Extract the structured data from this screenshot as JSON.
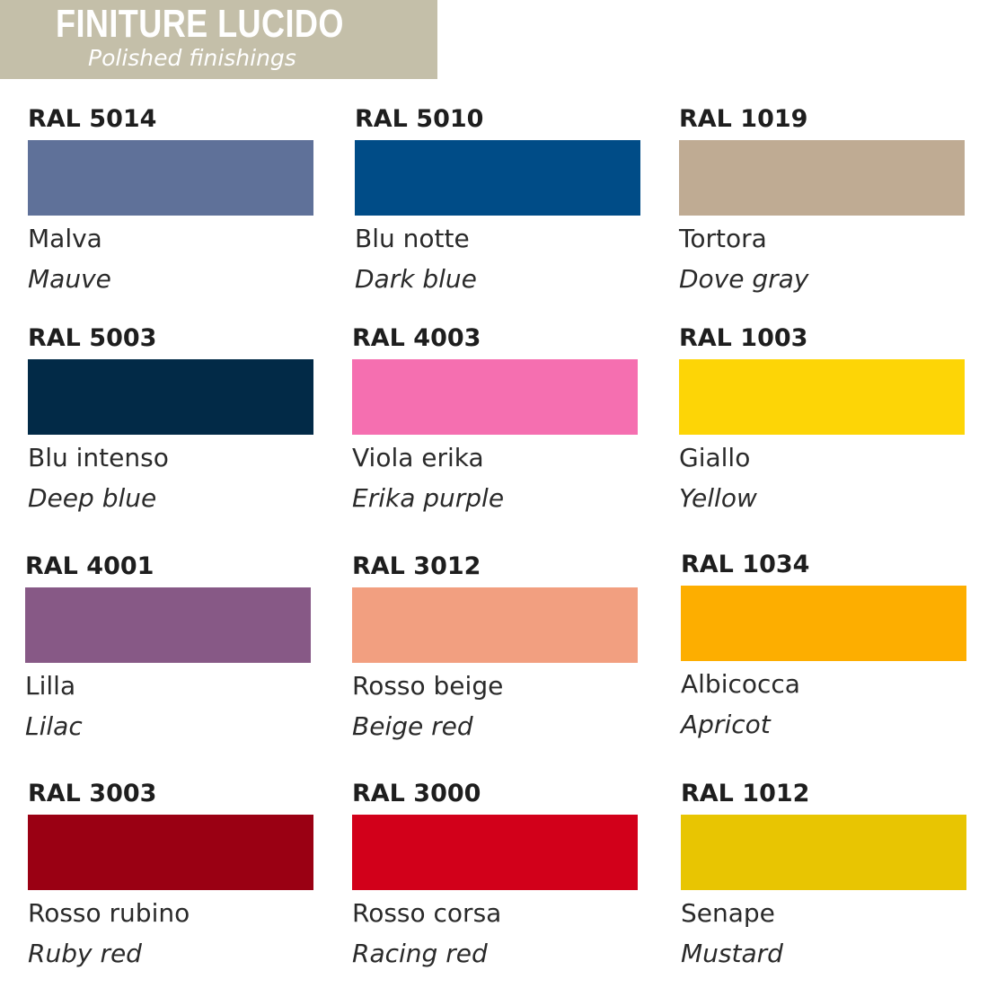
{
  "header": {
    "title": "FINITURE LUCIDO",
    "subtitle": "Polished finishings",
    "bg_color": "#c4bfa9"
  },
  "swatches": [
    {
      "code": "RAL 5014",
      "name": "Malva",
      "en": "Mauve",
      "color": "#5f7199"
    },
    {
      "code": "RAL 5010",
      "name": "Blu notte",
      "en": "Dark blue",
      "color": "#004c87"
    },
    {
      "code": "RAL 1019",
      "name": "Tortora",
      "en": "Dove gray",
      "color": "#bfab93"
    },
    {
      "code": "RAL 5003",
      "name": "Blu intenso",
      "en": "Deep blue",
      "color": "#022a47"
    },
    {
      "code": "RAL 4003",
      "name": "Viola erika",
      "en": "Erika purple",
      "color": "#f56fb0"
    },
    {
      "code": "RAL 1003",
      "name": "Giallo",
      "en": "Yellow",
      "color": "#fdd506"
    },
    {
      "code": "RAL 4001",
      "name": "Lilla",
      "en": "Lilac",
      "color": "#875986"
    },
    {
      "code": "RAL 3012",
      "name": "Rosso beige",
      "en": "Beige red",
      "color": "#f29f80"
    },
    {
      "code": "RAL 1034",
      "name": "Albicocca",
      "en": "Apricot",
      "color": "#fdae00"
    },
    {
      "code": "RAL 3003",
      "name": "Rosso rubino",
      "en": "Ruby red",
      "color": "#9a0013"
    },
    {
      "code": "RAL 3000",
      "name": "Rosso corsa",
      "en": "Racing red",
      "color": "#d2001a"
    },
    {
      "code": "RAL 1012",
      "name": "Senape",
      "en": "Mustard",
      "color": "#e8c502"
    }
  ]
}
